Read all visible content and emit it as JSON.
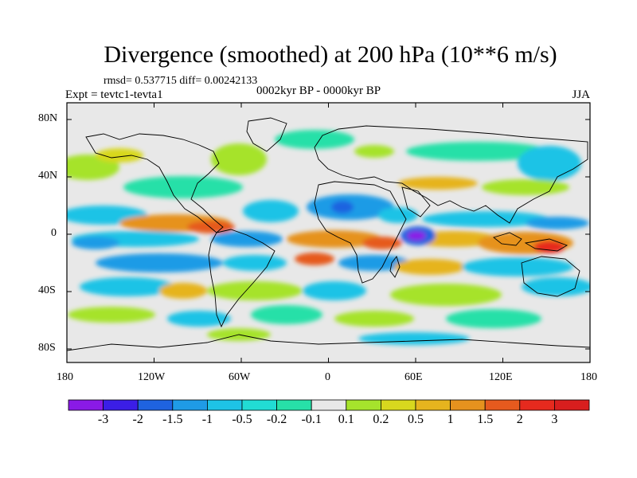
{
  "title": "Divergence (smoothed) at 200 hPa (10**6 m/s)",
  "stats": "rmsd= 0.537715  diff= 0.00242133",
  "experiment": "Expt = tevtc1-tevta1",
  "period": "0002kyr BP - 0000kyr BP",
  "season": "JJA",
  "latitude_labels": [
    "80N",
    "40N",
    "0",
    "40S",
    "80S"
  ],
  "longitude_labels": [
    "180",
    "120W",
    "60W",
    "0",
    "60E",
    "120E",
    "180"
  ],
  "colorbar": {
    "labels": [
      "-3",
      "-2",
      "-1.5",
      "-1",
      "-0.5",
      "-0.2",
      "-0.1",
      "0.1",
      "0.2",
      "0.5",
      "1",
      "1.5",
      "2",
      "3"
    ],
    "colors": [
      "#8a1ae6",
      "#3b1ee6",
      "#1f63e0",
      "#1f9be6",
      "#1ec3e6",
      "#21dcd4",
      "#27e0a8",
      "#e8e8e8",
      "#a6e32c",
      "#d8d81e",
      "#e6b41e",
      "#e6921e",
      "#e65a1e",
      "#e62a1e",
      "#d81e1e"
    ]
  }
}
